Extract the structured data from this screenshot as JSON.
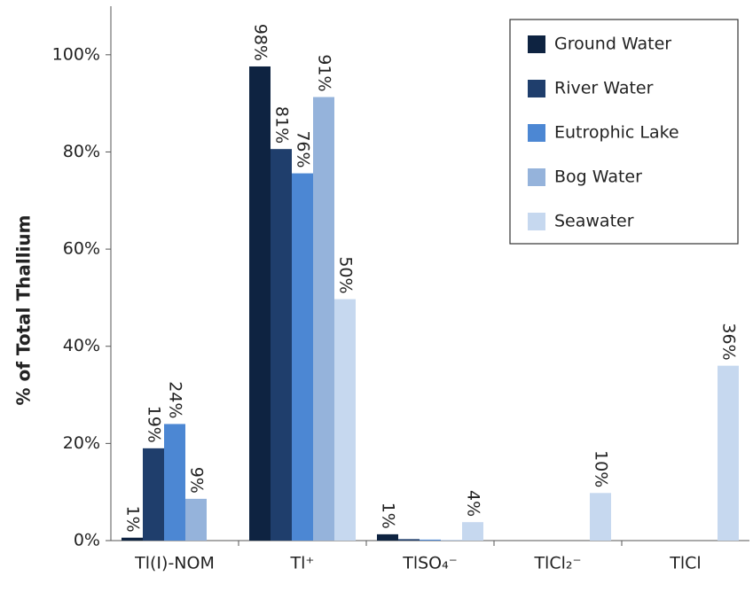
{
  "chart_data": {
    "type": "bar",
    "y_label": "% of Total Thallium",
    "categories": [
      "Tl(I)-NOM",
      "Tl⁺",
      "TlSO₄⁻",
      "TlCl₂⁻",
      "TlCl"
    ],
    "series": [
      {
        "name": "Ground Water",
        "color": "#0e2341",
        "values": [
          0.6,
          97.6,
          1.3,
          0,
          0
        ],
        "value_labels": [
          "1%",
          "98%",
          "1%",
          null,
          null
        ]
      },
      {
        "name": "River Water",
        "color": "#1f3e6c",
        "values": [
          19,
          80.6,
          0.3,
          0,
          0
        ],
        "value_labels": [
          "19%",
          "81%",
          null,
          null,
          null
        ]
      },
      {
        "name": "Eutrophic Lake",
        "color": "#4c87d3",
        "values": [
          24,
          75.6,
          0.2,
          0,
          0
        ],
        "value_labels": [
          "24%",
          "76%",
          null,
          null,
          null
        ]
      },
      {
        "name": "Bog Water",
        "color": "#95b3db",
        "values": [
          8.6,
          91.3,
          0.1,
          0,
          0
        ],
        "value_labels": [
          "9%",
          "91%",
          null,
          null,
          null
        ]
      },
      {
        "name": "Seawater",
        "color": "#c6d8ef",
        "values": [
          0,
          49.7,
          3.8,
          9.8,
          36
        ],
        "value_labels": [
          null,
          "50%",
          "4%",
          "10%",
          "36%"
        ]
      }
    ],
    "ylim": [
      0,
      110
    ],
    "yticks": [
      {
        "value": 0,
        "label": "0%"
      },
      {
        "value": 20,
        "label": "20%"
      },
      {
        "value": 40,
        "label": "40%"
      },
      {
        "value": 60,
        "label": "60%"
      },
      {
        "value": 80,
        "label": "80%"
      },
      {
        "value": 100,
        "label": "100%"
      }
    ],
    "grid": false,
    "legend": "upper right"
  }
}
